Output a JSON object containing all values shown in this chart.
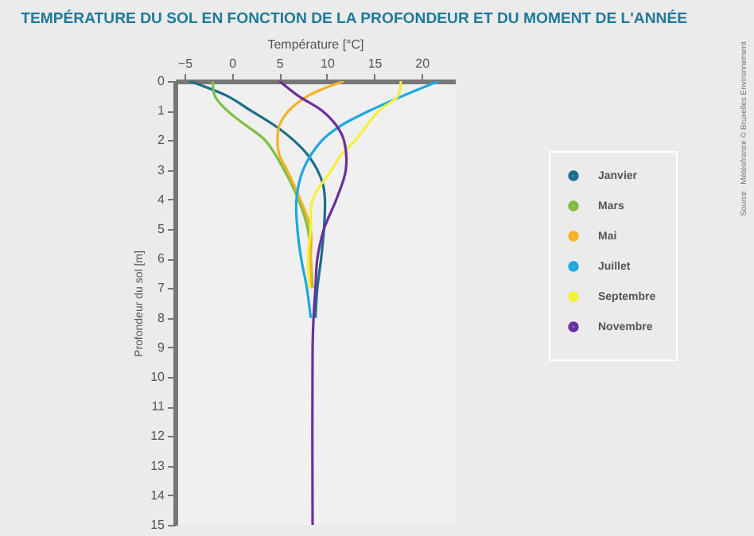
{
  "chart_data": {
    "type": "line",
    "title": "TEMPÉRATURE DU SOL EN FONCTION DE LA PROFONDEUR ET DU MOMENT DE L'ANNÉE",
    "xlabel": "Température [°C]",
    "ylabel": "Profondeur du sol [m]",
    "xlim": [
      -6,
      23.5
    ],
    "xticks": [
      -5,
      0,
      5,
      10,
      15,
      20
    ],
    "ylim": [
      15,
      0
    ],
    "yticks": [
      0,
      1,
      2,
      3,
      4,
      5,
      6,
      7,
      8,
      9,
      10,
      11,
      12,
      13,
      14,
      15
    ],
    "legend": "right",
    "marker": "none",
    "line_style": "solid",
    "grid": false,
    "annotations": [
      "Source : Météofrance © Bruxelles Environnement"
    ],
    "series": [
      {
        "name": "Janvier",
        "color": "#1b6f8a",
        "x": [
          -4.5,
          -0.5,
          2,
          4.5,
          6.5,
          8,
          9,
          9.6,
          9.8,
          9.7,
          9.4,
          9,
          8.8
        ],
        "values": [
          0,
          0.5,
          1,
          1.5,
          2,
          2.5,
          3,
          3.5,
          4,
          5,
          6,
          7,
          8
        ]
      },
      {
        "name": "Mars",
        "color": "#7dbf45",
        "x": [
          -2,
          -1.8,
          -0.5,
          1.5,
          3.5,
          5.5,
          7,
          8,
          8.3,
          8.5
        ],
        "values": [
          0,
          0.5,
          1,
          1.5,
          2,
          3,
          4,
          5,
          6,
          7
        ]
      },
      {
        "name": "Mai",
        "color": "#f5b225",
        "x": [
          11.8,
          8,
          6,
          5,
          4.8,
          5,
          5.8,
          7.2,
          8.3,
          8.3,
          8.4
        ],
        "values": [
          0,
          0.5,
          1,
          1.5,
          2,
          2.5,
          3,
          4,
          5,
          6,
          7
        ]
      },
      {
        "name": "Juillet",
        "color": "#1ba9e0",
        "x": [
          21.8,
          18,
          14.5,
          11.5,
          9.5,
          7.5,
          6.8,
          6.9,
          7.3,
          7.9,
          8.3
        ],
        "values": [
          0,
          0.5,
          1,
          1.5,
          2,
          3,
          4,
          5,
          6,
          7,
          8
        ]
      },
      {
        "name": "Septembre",
        "color": "#f5f03a",
        "x": [
          17.8,
          17.5,
          15.5,
          13,
          11.5,
          10.5,
          8.5,
          8.3,
          8,
          8.2
        ],
        "values": [
          0,
          0.5,
          1,
          2,
          2.5,
          3,
          4,
          5,
          6,
          7
        ]
      },
      {
        "name": "Novembre",
        "color": "#6a2fa0",
        "x": [
          5,
          7,
          9.5,
          11,
          11.8,
          12,
          11,
          9.7,
          9,
          8.8,
          8.6,
          8.5,
          8.5
        ],
        "values": [
          0,
          0.5,
          1,
          1.5,
          2,
          3,
          4,
          5,
          6,
          7,
          8,
          9,
          15
        ]
      }
    ]
  }
}
